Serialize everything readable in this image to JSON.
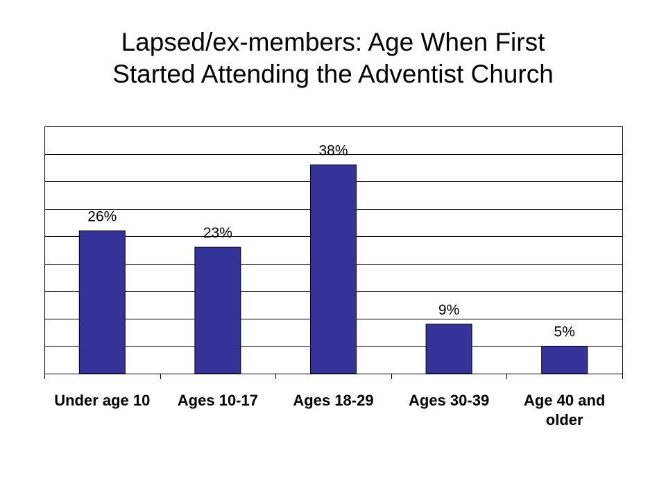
{
  "title_lines": [
    "Lapsed/ex-members: Age When First",
    "Started Attending the Adventist Church"
  ],
  "colors": {
    "bar": "#333399",
    "grid": "#000000",
    "background": "#ffffff"
  },
  "chart_data": {
    "type": "bar",
    "title": "Lapsed/ex-members: Age When First Started Attending the Adventist Church",
    "categories": [
      [
        "Under age 10"
      ],
      [
        "Ages 10-17"
      ],
      [
        "Ages 18-29"
      ],
      [
        "Ages 30-39"
      ],
      [
        "Age 40 and",
        "older"
      ]
    ],
    "values": [
      26,
      23,
      38,
      9,
      5
    ],
    "data_labels": [
      "26%",
      "23%",
      "38%",
      "9%",
      "5%"
    ],
    "ylim": [
      0,
      45
    ],
    "y_grid_step": 5,
    "grid": true,
    "legend": "none"
  }
}
